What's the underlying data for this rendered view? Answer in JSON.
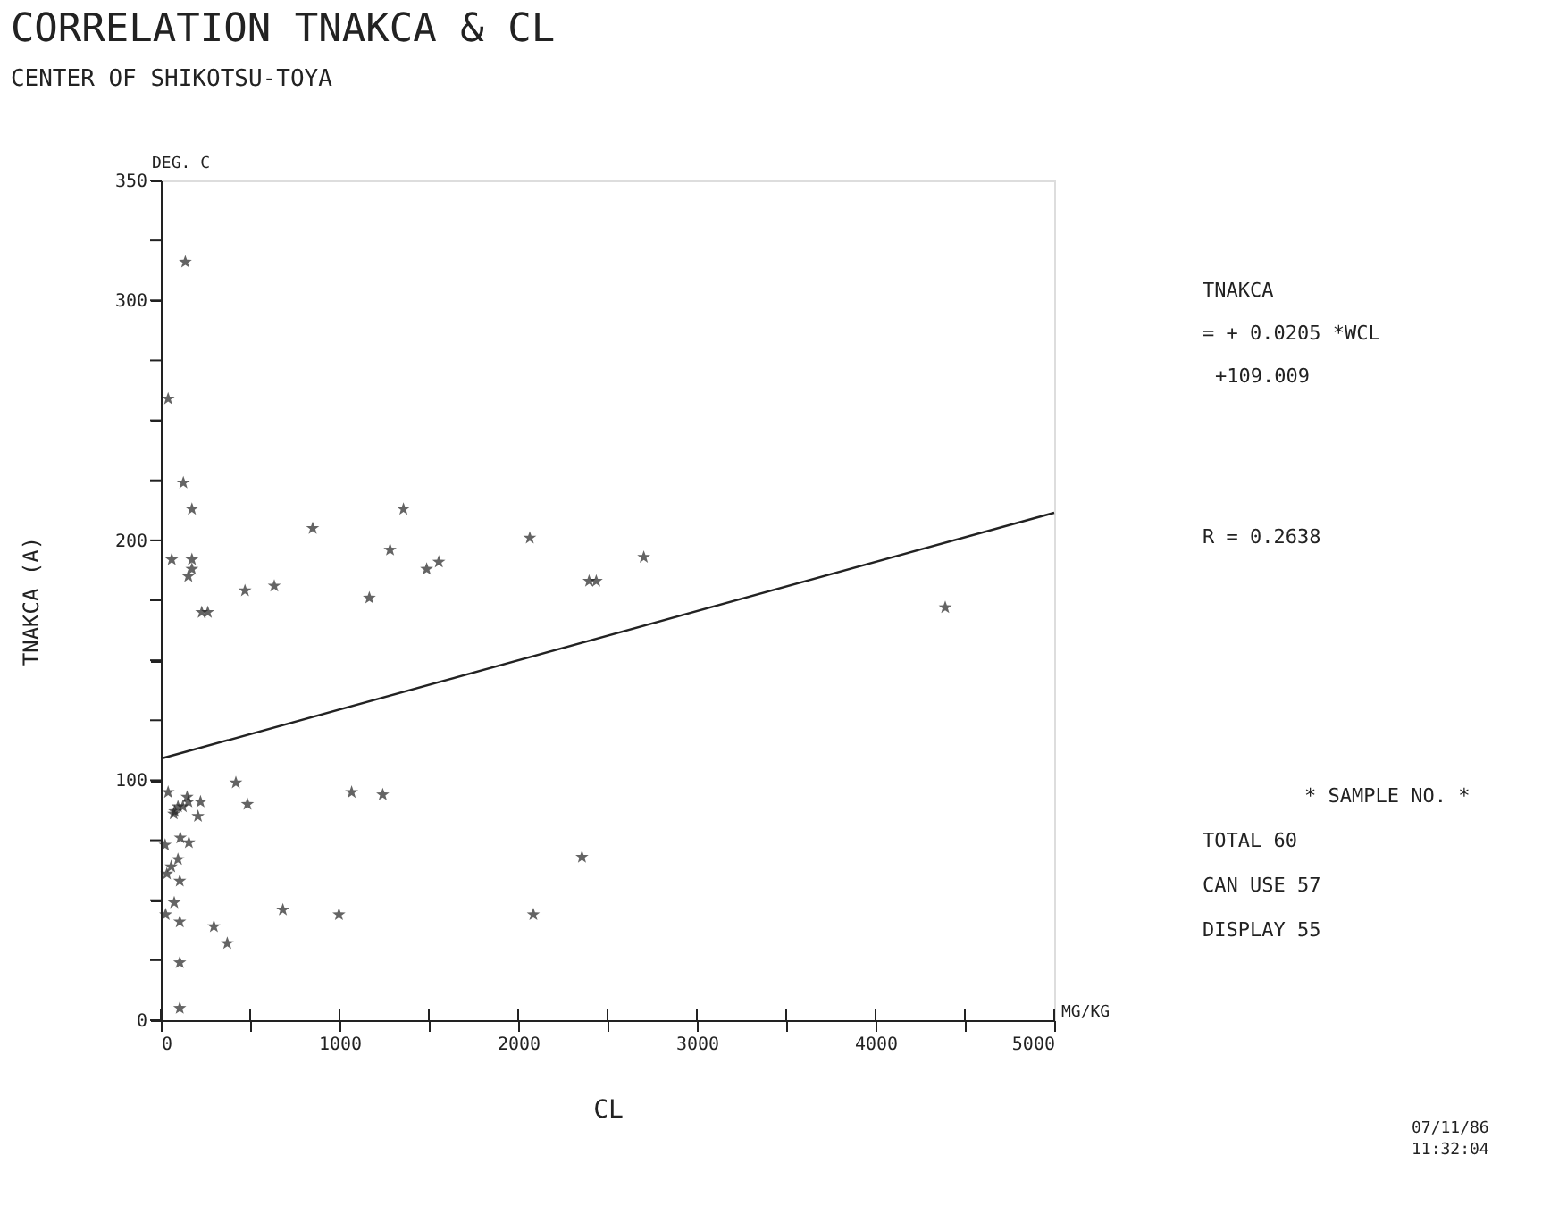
{
  "chart_data": {
    "type": "scatter",
    "title": "CORRELATION TNAKCA & CL",
    "subtitle": "CENTER OF SHIKOTSU-TOYA",
    "xlabel": "CL",
    "ylabel": "TNAKCA    (A)",
    "marker": "star",
    "grid": false,
    "xlim": [
      0,
      5000
    ],
    "ylim": [
      0,
      350
    ],
    "xticks": [
      0,
      {
        "value": 500,
        "label": null
      },
      1000,
      {
        "value": 1500,
        "label": null
      },
      2000,
      {
        "value": 2500,
        "label": null
      },
      3000,
      {
        "value": 3500,
        "label": null
      },
      4000,
      {
        "value": 4500,
        "label": null
      },
      5000
    ],
    "yticks": [
      0,
      {
        "value": 25,
        "label": null
      },
      {
        "value": 50,
        "label": null
      },
      {
        "value": 75,
        "label": null
      },
      100,
      {
        "value": 125,
        "label": null
      },
      {
        "value": 150,
        "label": null
      },
      {
        "value": 175,
        "label": null
      },
      200,
      {
        "value": 225,
        "label": null
      },
      {
        "value": 250,
        "label": null
      },
      {
        "value": 275,
        "label": null
      },
      300,
      {
        "value": 325,
        "label": null
      },
      350
    ],
    "series": [
      {
        "type": "scatter",
        "color": "#222222",
        "x": [
          137,
          41,
          126,
          174,
          61,
          174,
          174,
          154,
          229,
          263,
          471,
          635,
          850,
          1167,
          1283,
          1358,
          1488,
          1556,
          2065,
          2397,
          2437,
          2703,
          4390,
          2357,
          41,
          78,
          96,
          72,
          147,
          154,
          222,
          208,
          420,
          485,
          1068,
          1242,
          24,
          109,
          157,
          96,
          58,
          34,
          106,
          75,
          27,
          106,
          683,
          997,
          2085,
          297,
          372,
          106,
          106,
          123
        ],
        "values": [
          316,
          259,
          224,
          213,
          192,
          192,
          188,
          185,
          170,
          170,
          179,
          181,
          205,
          176,
          196,
          213,
          188,
          191,
          201,
          183,
          183,
          193,
          172,
          68,
          95,
          87,
          89,
          86,
          93,
          91,
          91,
          85,
          99,
          90,
          95,
          94,
          73,
          76,
          74,
          67,
          64,
          61,
          58,
          49,
          44,
          41,
          46,
          44,
          44,
          39,
          32,
          24,
          5,
          89
        ]
      },
      {
        "type": "line",
        "marker": "none",
        "color": "#222222",
        "x": [
          0,
          5000
        ],
        "values": [
          109,
          211.5
        ]
      }
    ],
    "annotations": [
      "DEG. C",
      "MG/KG",
      "TNAKCA",
      "= +   0.0205 *WCL",
      "+109.009",
      "R =  0.2638",
      "* SAMPLE NO. *",
      "TOTAL      60",
      "CAN USE    57",
      "DISPLAY    55",
      "07/11/86",
      "11:32:04"
    ]
  }
}
